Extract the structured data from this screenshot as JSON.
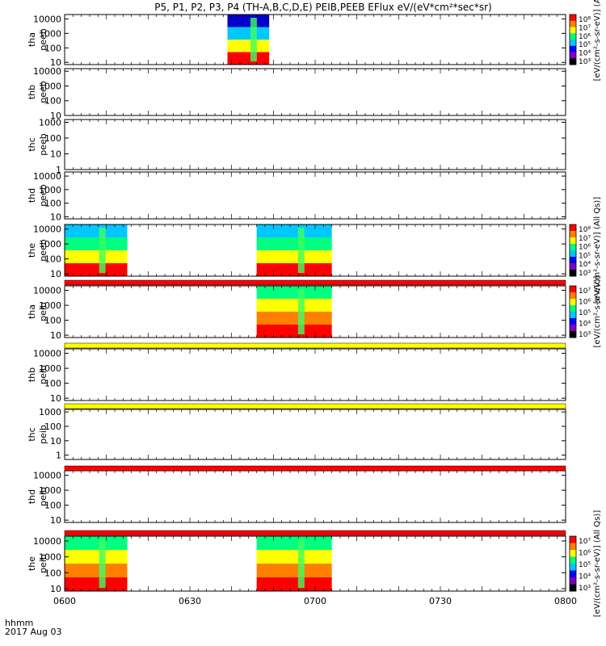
{
  "chart_data": {
    "type": "heatmap",
    "title": "P5, P1, P2, P3, P4 (TH-A,B,C,D,E) PEIB,PEEB EFlux eV/(eV*cm²*sec*sr)",
    "x_ticks": [
      "0600",
      "0630",
      "0700",
      "0730",
      "0800"
    ],
    "xlim": [
      "06:00",
      "08:00"
    ],
    "time_label": "hhmm",
    "date_label": "2017 Aug 03",
    "y_scale": "log",
    "colormap": "rainbow",
    "panels": [
      {
        "name": "tha-peeb",
        "label1": "tha",
        "label2": "peeb",
        "ylim": [
          7,
          20000
        ],
        "y_ticks": [
          "10",
          "100",
          "1000",
          "10000"
        ],
        "coverage": [
          [
            "06:39",
            "06:49"
          ]
        ],
        "bands": [
          "#0000c8",
          "#00c8ff",
          "#ffff00",
          "#ff0000"
        ],
        "colorbar": {
          "ticks": [
            "10⁸",
            "10⁷",
            "10⁶",
            "10⁵",
            "10⁴",
            "10³"
          ],
          "label": "[eV/(cm²-s-sr-eV)] (A"
        }
      },
      {
        "name": "thb-peeb",
        "label1": "thb",
        "label2": "peeb",
        "ylim": [
          10,
          15000
        ],
        "y_ticks": [
          "10",
          "100",
          "1000",
          "10000"
        ],
        "coverage": []
      },
      {
        "name": "thc-peeb",
        "label1": "thc",
        "label2": "peeb",
        "ylim": [
          1,
          1500
        ],
        "y_ticks": [
          "1",
          "10",
          "100",
          "1000"
        ],
        "coverage": []
      },
      {
        "name": "thd-peeb",
        "label1": "thd",
        "label2": "peeb",
        "ylim": [
          7,
          20000
        ],
        "y_ticks": [
          "10",
          "100",
          "1000",
          "10000"
        ],
        "coverage": []
      },
      {
        "name": "the-peeb",
        "label1": "the",
        "label2": "peeb",
        "ylim": [
          7,
          20000
        ],
        "y_ticks": [
          "10",
          "100",
          "1000",
          "10000"
        ],
        "coverage": [
          [
            "06:00",
            "06:15"
          ],
          [
            "06:46",
            "07:04"
          ]
        ],
        "bands": [
          "#00c8ff",
          "#00ff80",
          "#ffff00",
          "#ff0000"
        ],
        "colorbar": {
          "ticks": [
            "10⁸",
            "10⁷",
            "10⁶",
            "10⁵",
            "10⁴",
            "10³"
          ],
          "label": "[eV/(cm²-s-sr-eV)] (All Qs)]"
        }
      },
      {
        "name": "tha-peib",
        "label1": "tha",
        "label2": "peib",
        "ylim": [
          7,
          20000
        ],
        "y_ticks": [
          "10",
          "100",
          "1000",
          "10000"
        ],
        "coverage": [
          [
            "06:46",
            "07:04"
          ]
        ],
        "bands": [
          "#00ff80",
          "#ffff00",
          "#ff8000",
          "#ff0000"
        ],
        "colorbar": {
          "ticks": [
            "10⁷",
            "10⁶",
            "10⁵",
            "10⁴",
            "10³"
          ],
          "label": "[eV/(cm²-s-sr-eV)]"
        }
      },
      {
        "name": "thb-peib",
        "label1": "thb",
        "label2": "peib",
        "ylim": [
          7,
          20000
        ],
        "y_ticks": [
          "10",
          "100",
          "1000",
          "10000"
        ],
        "coverage": []
      },
      {
        "name": "thc-peib",
        "label1": "thc",
        "label2": "peib",
        "ylim": [
          0.5,
          1500
        ],
        "y_ticks": [
          "1",
          "10",
          "100",
          "1000"
        ],
        "coverage": []
      },
      {
        "name": "thd-peib",
        "label1": "thd",
        "label2": "peib",
        "ylim": [
          7,
          20000
        ],
        "y_ticks": [
          "10",
          "100",
          "1000",
          "10000"
        ],
        "coverage": []
      },
      {
        "name": "the-peib",
        "label1": "the",
        "label2": "peib",
        "ylim": [
          7,
          20000
        ],
        "y_ticks": [
          "10",
          "100",
          "1000",
          "10000"
        ],
        "coverage": [
          [
            "06:00",
            "06:15"
          ],
          [
            "06:46",
            "07:04"
          ]
        ],
        "bands": [
          "#00ff80",
          "#ffff00",
          "#ff8000",
          "#ff0000"
        ],
        "colorbar": {
          "ticks": [
            "10⁷",
            "10⁶",
            "10⁵",
            "10⁴",
            "10³"
          ],
          "label": "[eV/(cm²-s-sr-eV)] (All Qs)]"
        }
      }
    ],
    "flag_bars": [
      {
        "name": "flag-bar-red-1",
        "color": "#ff0000"
      },
      {
        "name": "flag-bar-yellow-1",
        "color": "#ffff00"
      },
      {
        "name": "flag-bar-yellow-2",
        "color": "#ffff00"
      },
      {
        "name": "flag-bar-red-2",
        "color": "#ff0000"
      },
      {
        "name": "flag-bar-red-3",
        "color": "#ff0000"
      }
    ]
  }
}
